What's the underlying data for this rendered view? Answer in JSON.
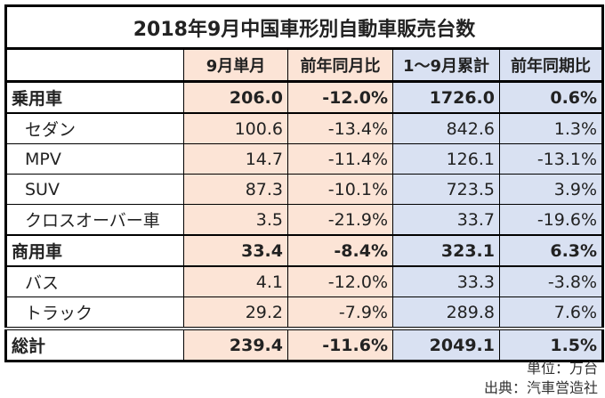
{
  "title": "2018年9月中国車形別自動車販売台数",
  "headers": [
    "",
    "9月単月",
    "前年同月比",
    "1～9月累計",
    "前年同期比"
  ],
  "rows": [
    {
      "label": "乗用車",
      "v": [
        "206.0",
        "-12.0%",
        "1726.0",
        "0.6%"
      ],
      "type": "bold"
    },
    {
      "label": "セダン",
      "v": [
        "100.6",
        "-13.4%",
        "842.6",
        "1.3%"
      ],
      "type": "sub"
    },
    {
      "label": "MPV",
      "v": [
        "14.7",
        "-11.4%",
        "126.1",
        "-13.1%"
      ],
      "type": "sub"
    },
    {
      "label": "SUV",
      "v": [
        "87.3",
        "-10.1%",
        "723.5",
        "3.9%"
      ],
      "type": "sub"
    },
    {
      "label": "クロスオーバー車",
      "v": [
        "3.5",
        "-21.9%",
        "33.7",
        "-19.6%"
      ],
      "type": "sub"
    },
    {
      "label": "商用車",
      "v": [
        "33.4",
        "-8.4%",
        "323.1",
        "6.3%"
      ],
      "type": "bold"
    },
    {
      "label": "バス",
      "v": [
        "4.1",
        "-12.0%",
        "33.3",
        "-3.8%"
      ],
      "type": "sub"
    },
    {
      "label": "トラック",
      "v": [
        "29.2",
        "-7.9%",
        "289.8",
        "7.6%"
      ],
      "type": "sub"
    },
    {
      "label": "総計",
      "v": [
        "239.4",
        "-11.6%",
        "2049.1",
        "1.5%"
      ],
      "type": "bold total"
    }
  ],
  "unit": "単位：万台",
  "source": "出典：汽車営造社",
  "colors": {
    "monthly": "#FCE4D6",
    "cumulative": "#D9E1F2"
  }
}
